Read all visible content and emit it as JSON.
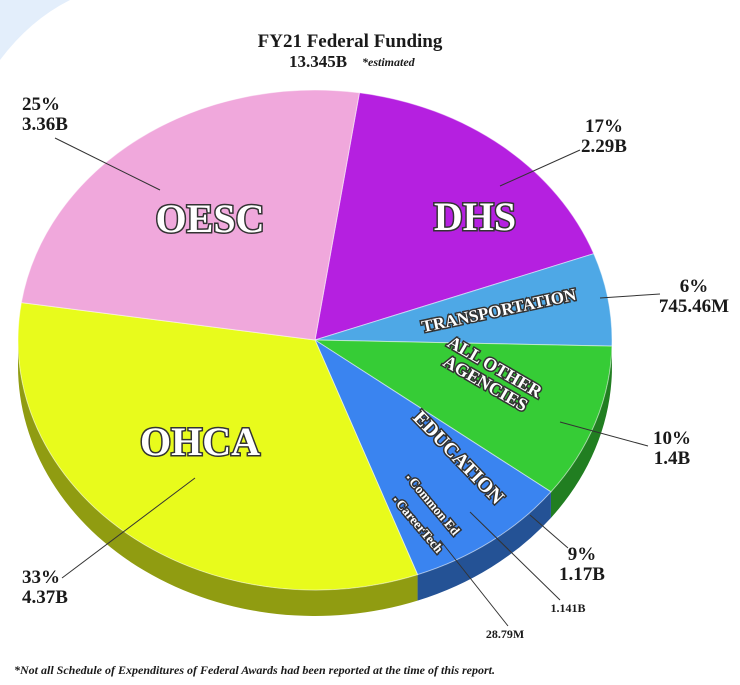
{
  "chart_data": {
    "type": "pie",
    "title": "FY21 Federal Funding",
    "subtitle": "13.345B",
    "subtitle_note": "*estimated",
    "footnote": "*Not all Schedule of Expenditures of Federal Awards had been reported at the time of this report.",
    "categories": [
      "DHS",
      "TRANSPORTATION",
      "ALL OTHER AGENCIES",
      "EDUCATION",
      "OHCA",
      "OESC"
    ],
    "values": [
      17,
      6,
      10,
      9,
      33,
      25
    ],
    "value_labels": [
      "17%",
      "6%",
      "10%",
      "9%",
      "33%",
      "25%"
    ],
    "amount_labels": [
      "2.29B",
      "745.46M",
      "1.4B",
      "1.17B",
      "4.37B",
      "3.36B"
    ],
    "colors": [
      "#b520e0",
      "#4ea8e6",
      "#36cc36",
      "#3a84f0",
      "#e8fb1c",
      "#f0a8dc"
    ],
    "education_items": [
      {
        "label": "Common Ed",
        "amount": "1.141B"
      },
      {
        "label": "CareerTech",
        "amount": "28.79M"
      }
    ]
  }
}
